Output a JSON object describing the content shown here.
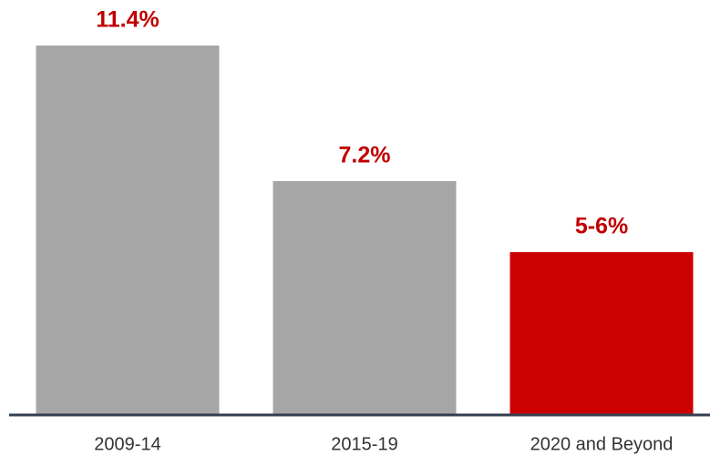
{
  "chart_data": {
    "type": "bar",
    "categories": [
      "2009-14",
      "2015-19",
      "2020 and Beyond"
    ],
    "values": [
      11.4,
      7.2,
      5
    ],
    "value_labels": [
      "11.4%",
      "7.2%",
      "5-6%"
    ],
    "colors": [
      "#a6a6a6",
      "#a6a6a6",
      "#cc0000"
    ],
    "label_color": "#c00000",
    "grid": false
  }
}
